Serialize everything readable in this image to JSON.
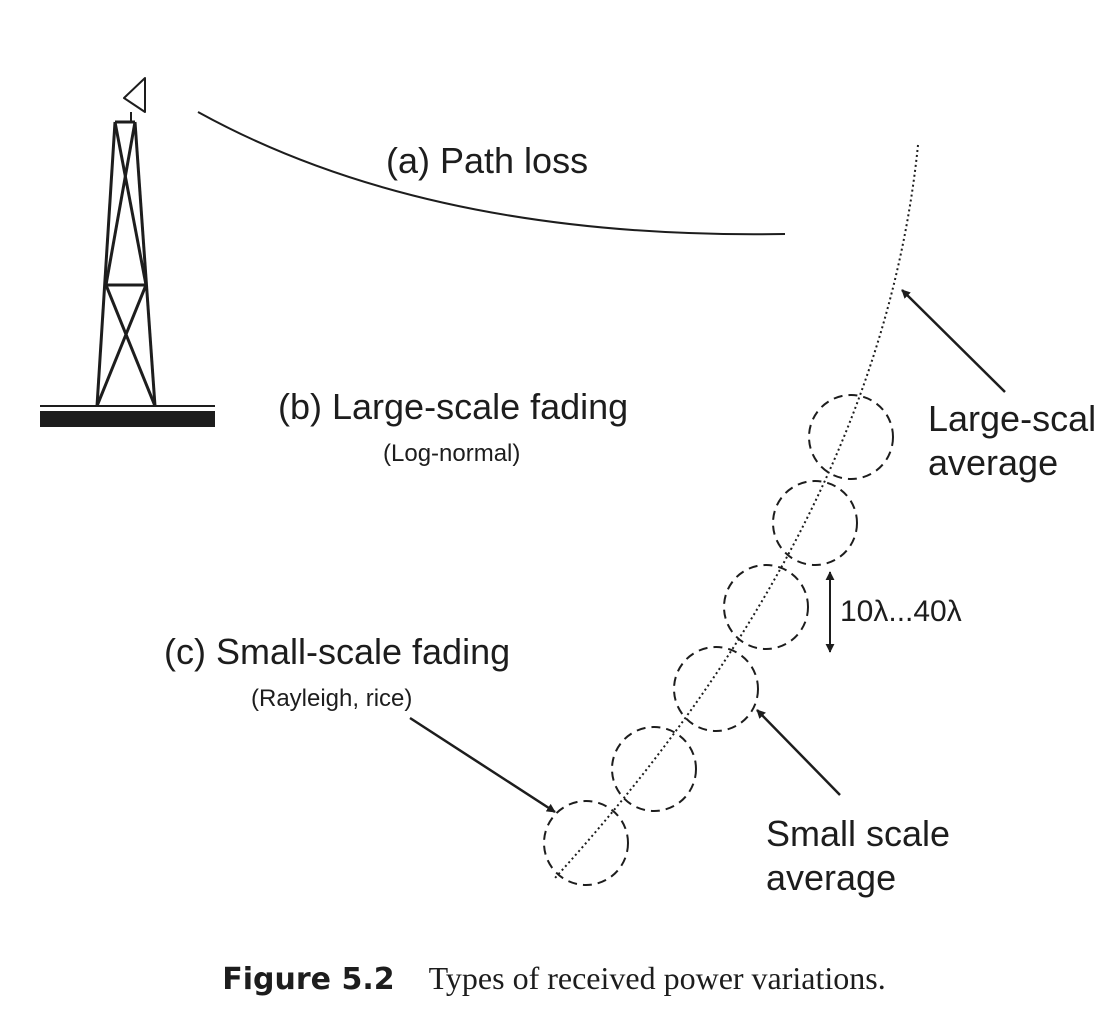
{
  "diagram": {
    "path_loss_label": "(a) Path loss",
    "large_scale_label": "(b) Large-scale fading",
    "large_scale_sub": "(Log-normal)",
    "small_scale_label": "(c) Small-scale fading",
    "small_scale_sub": "(Rayleigh, rice)",
    "large_avg_line1": "Large-scal",
    "large_avg_line2": "average",
    "small_avg_line1": "Small scale",
    "small_avg_line2": "average",
    "spacing_label": "10λ...40λ"
  },
  "caption": {
    "number": "Figure 5.2",
    "text": "Types of received power variations."
  }
}
